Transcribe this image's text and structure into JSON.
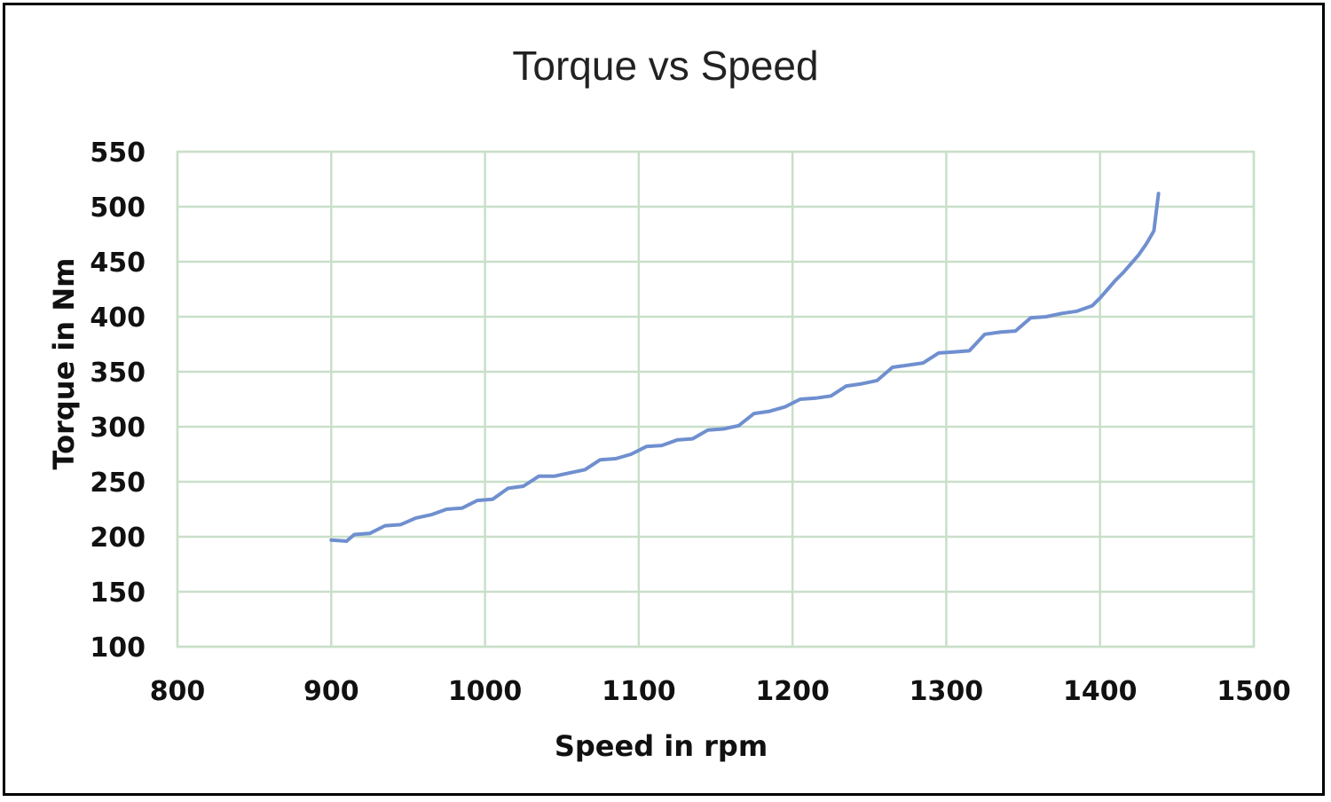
{
  "chart_data": {
    "type": "line",
    "title": "Torque vs Speed",
    "xlabel": "Speed in rpm",
    "ylabel": "Torque in Nm",
    "xlim": [
      800,
      1500
    ],
    "ylim": [
      100,
      550
    ],
    "xticks": [
      800,
      900,
      1000,
      1100,
      1200,
      1300,
      1400,
      1500
    ],
    "yticks": [
      100,
      150,
      200,
      250,
      300,
      350,
      400,
      450,
      500,
      550
    ],
    "grid": true,
    "legend": "none",
    "colors": {
      "series": "#6f8fcf",
      "grid": "#c9dfc9"
    },
    "series": [
      {
        "x": [
          900,
          910,
          915,
          925,
          935,
          945,
          955,
          965,
          975,
          985,
          995,
          1005,
          1015,
          1025,
          1035,
          1045,
          1055,
          1065,
          1075,
          1085,
          1095,
          1105,
          1115,
          1125,
          1135,
          1145,
          1155,
          1165,
          1175,
          1185,
          1195,
          1205,
          1215,
          1225,
          1235,
          1245,
          1255,
          1265,
          1275,
          1285,
          1295,
          1305,
          1315,
          1325,
          1335,
          1345,
          1355,
          1365,
          1375,
          1385,
          1395,
          1400,
          1405,
          1410,
          1415,
          1420,
          1425,
          1430,
          1435,
          1438
        ],
        "y": [
          197,
          196,
          202,
          203,
          210,
          211,
          217,
          220,
          225,
          226,
          233,
          234,
          244,
          246,
          255,
          255,
          258,
          261,
          270,
          271,
          275,
          282,
          283,
          288,
          289,
          297,
          298,
          301,
          312,
          314,
          318,
          325,
          326,
          328,
          337,
          339,
          342,
          354,
          356,
          358,
          367,
          368,
          369,
          384,
          386,
          387,
          399,
          400,
          403,
          405,
          410,
          417,
          425,
          433,
          440,
          448,
          456,
          466,
          478,
          512
        ]
      }
    ]
  }
}
